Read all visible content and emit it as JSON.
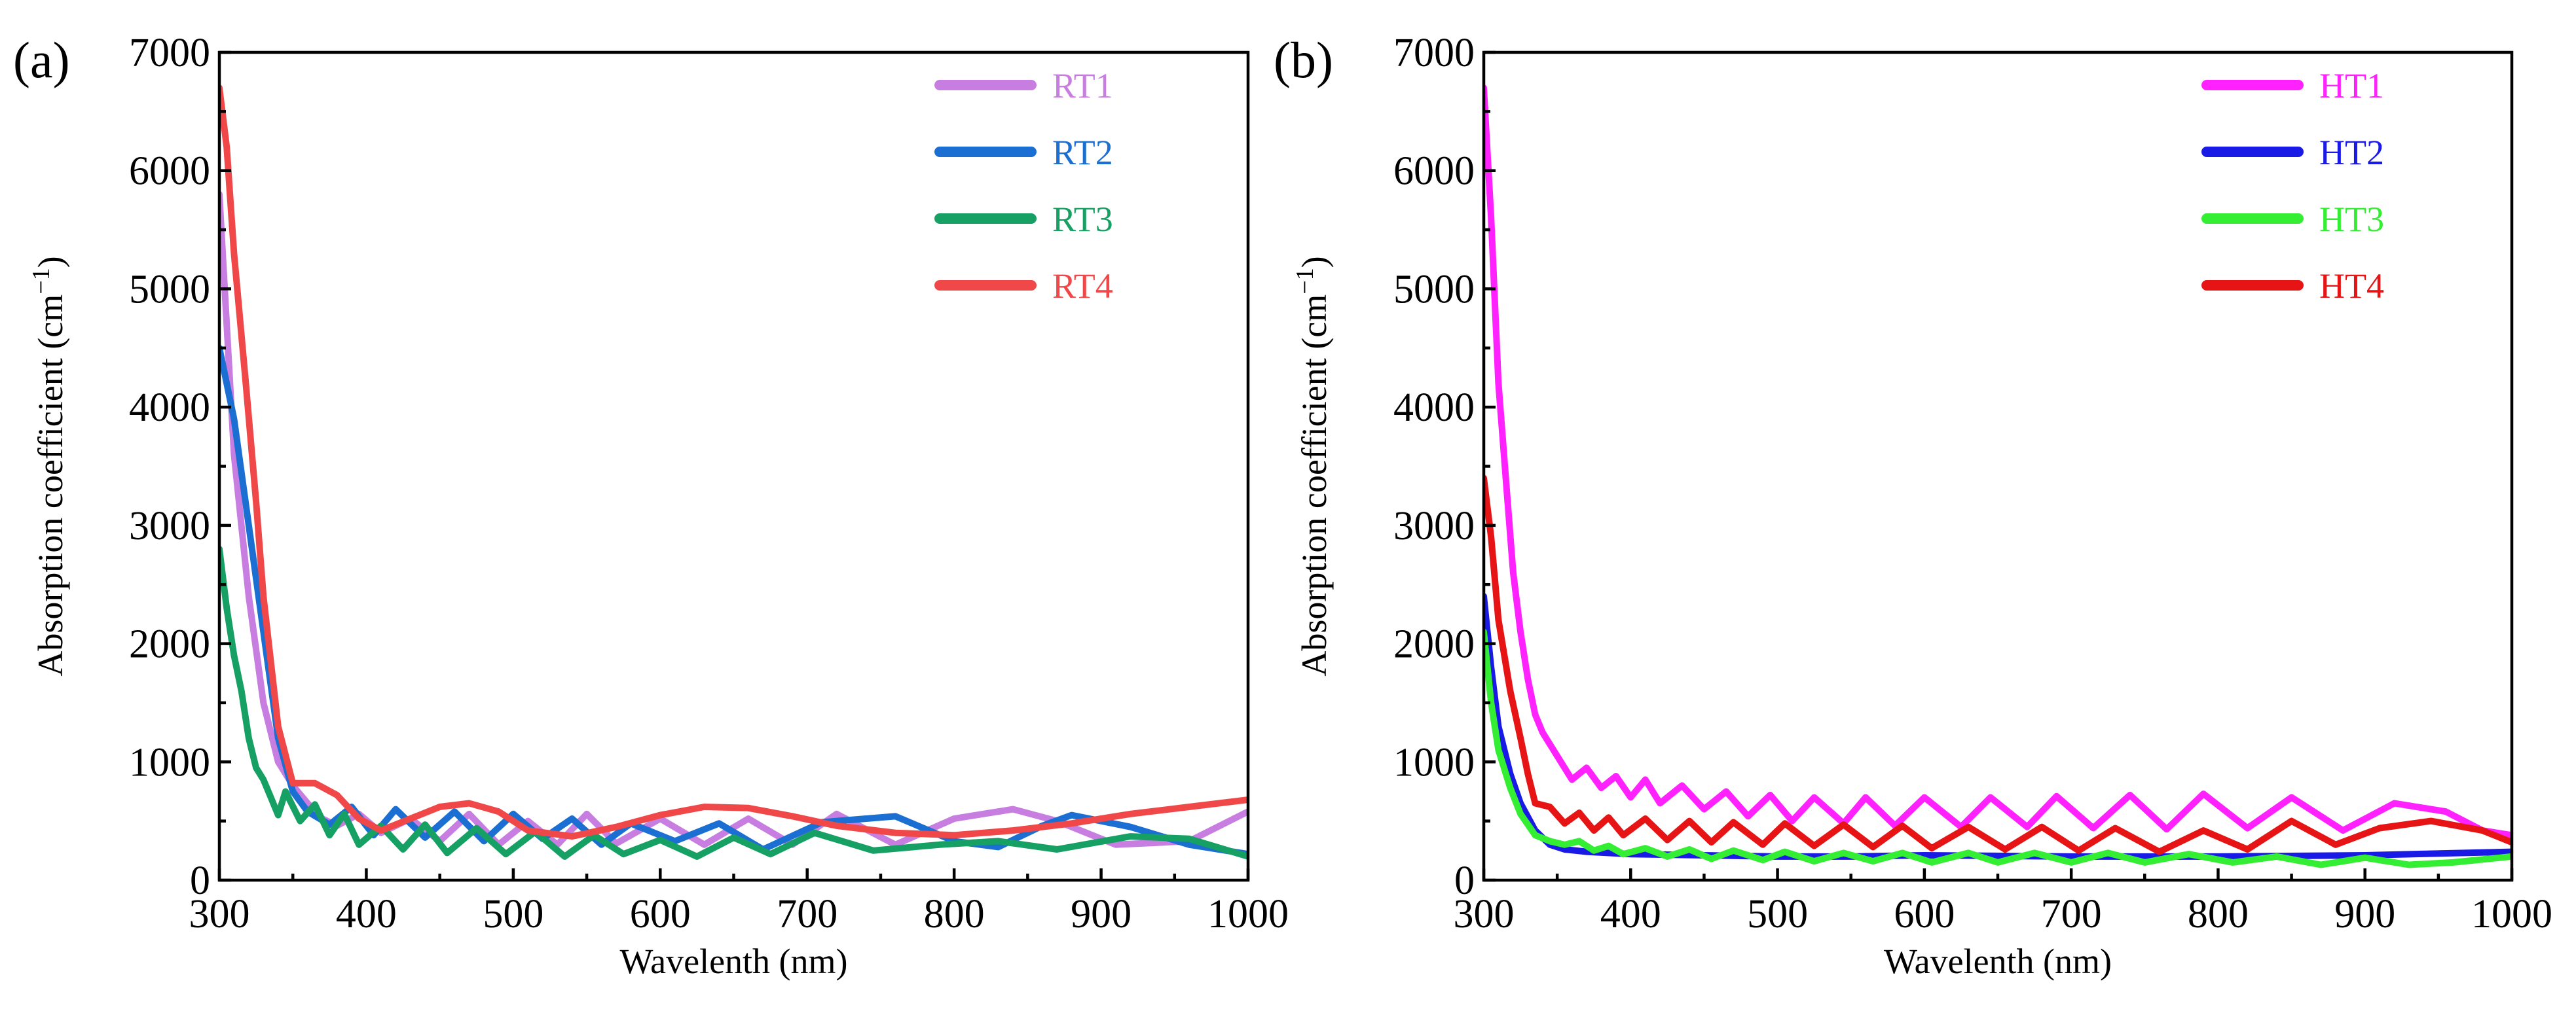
{
  "chart_data": [
    {
      "type": "line",
      "panel_label": "(a)",
      "xlabel": "Wavelenth (nm)",
      "ylabel_main": "Absorption coefficient (cm",
      "ylabel_sup": "−1",
      "ylabel_close": ")",
      "xlim": [
        300,
        1000
      ],
      "ylim": [
        0,
        7000
      ],
      "xticks": [
        300,
        400,
        500,
        600,
        700,
        800,
        900,
        1000
      ],
      "yticks": [
        0,
        1000,
        2000,
        3000,
        4000,
        5000,
        6000,
        7000
      ],
      "legend_position": "top-right",
      "series": [
        {
          "name": "RT1",
          "color": "#c77ee0",
          "points": [
            [
              300,
              5800
            ],
            [
              310,
              3600
            ],
            [
              320,
              2400
            ],
            [
              330,
              1500
            ],
            [
              340,
              1000
            ],
            [
              350,
              800
            ],
            [
              360,
              650
            ],
            [
              370,
              520
            ],
            [
              380,
              460
            ],
            [
              395,
              560
            ],
            [
              410,
              400
            ],
            [
              430,
              520
            ],
            [
              450,
              330
            ],
            [
              470,
              560
            ],
            [
              490,
              300
            ],
            [
              510,
              500
            ],
            [
              530,
              300
            ],
            [
              550,
              560
            ],
            [
              570,
              310
            ],
            [
              600,
              520
            ],
            [
              630,
              300
            ],
            [
              660,
              520
            ],
            [
              690,
              300
            ],
            [
              720,
              560
            ],
            [
              760,
              300
            ],
            [
              800,
              520
            ],
            [
              840,
              600
            ],
            [
              870,
              500
            ],
            [
              910,
              300
            ],
            [
              960,
              330
            ],
            [
              1000,
              580
            ]
          ]
        },
        {
          "name": "RT2",
          "color": "#1c6fd2",
          "points": [
            [
              300,
              4500
            ],
            [
              310,
              3900
            ],
            [
              320,
              3000
            ],
            [
              330,
              2100
            ],
            [
              340,
              1200
            ],
            [
              350,
              750
            ],
            [
              360,
              580
            ],
            [
              375,
              470
            ],
            [
              390,
              620
            ],
            [
              405,
              380
            ],
            [
              420,
              600
            ],
            [
              440,
              360
            ],
            [
              460,
              580
            ],
            [
              480,
              330
            ],
            [
              500,
              560
            ],
            [
              520,
              350
            ],
            [
              540,
              520
            ],
            [
              560,
              300
            ],
            [
              580,
              480
            ],
            [
              610,
              330
            ],
            [
              640,
              480
            ],
            [
              670,
              260
            ],
            [
              710,
              490
            ],
            [
              760,
              540
            ],
            [
              800,
              330
            ],
            [
              830,
              280
            ],
            [
              860,
              460
            ],
            [
              880,
              550
            ],
            [
              920,
              450
            ],
            [
              960,
              300
            ],
            [
              1000,
              220
            ]
          ]
        },
        {
          "name": "RT3",
          "color": "#16a063",
          "points": [
            [
              300,
              2800
            ],
            [
              305,
              2300
            ],
            [
              310,
              1900
            ],
            [
              315,
              1600
            ],
            [
              320,
              1200
            ],
            [
              325,
              950
            ],
            [
              330,
              850
            ],
            [
              335,
              700
            ],
            [
              340,
              550
            ],
            [
              345,
              750
            ],
            [
              355,
              500
            ],
            [
              365,
              640
            ],
            [
              375,
              380
            ],
            [
              385,
              560
            ],
            [
              395,
              300
            ],
            [
              410,
              460
            ],
            [
              425,
              260
            ],
            [
              440,
              470
            ],
            [
              455,
              230
            ],
            [
              475,
              440
            ],
            [
              495,
              220
            ],
            [
              515,
              410
            ],
            [
              535,
              200
            ],
            [
              555,
              380
            ],
            [
              575,
              220
            ],
            [
              600,
              340
            ],
            [
              625,
              200
            ],
            [
              650,
              360
            ],
            [
              675,
              220
            ],
            [
              705,
              400
            ],
            [
              745,
              250
            ],
            [
              790,
              300
            ],
            [
              830,
              330
            ],
            [
              870,
              260
            ],
            [
              920,
              370
            ],
            [
              960,
              350
            ],
            [
              1000,
              200
            ]
          ]
        },
        {
          "name": "RT4",
          "color": "#f04848",
          "points": [
            [
              300,
              6700
            ],
            [
              305,
              6200
            ],
            [
              310,
              5300
            ],
            [
              318,
              4200
            ],
            [
              325,
              3200
            ],
            [
              330,
              2400
            ],
            [
              340,
              1300
            ],
            [
              350,
              820
            ],
            [
              365,
              820
            ],
            [
              380,
              720
            ],
            [
              395,
              520
            ],
            [
              410,
              420
            ],
            [
              430,
              520
            ],
            [
              450,
              620
            ],
            [
              470,
              650
            ],
            [
              490,
              580
            ],
            [
              510,
              420
            ],
            [
              540,
              370
            ],
            [
              570,
              450
            ],
            [
              600,
              550
            ],
            [
              630,
              620
            ],
            [
              660,
              610
            ],
            [
              690,
              540
            ],
            [
              720,
              460
            ],
            [
              760,
              400
            ],
            [
              800,
              380
            ],
            [
              840,
              420
            ],
            [
              880,
              480
            ],
            [
              920,
              560
            ],
            [
              960,
              620
            ],
            [
              1000,
              680
            ]
          ]
        }
      ]
    },
    {
      "type": "line",
      "panel_label": "(b)",
      "xlabel": "Wavelenth (nm)",
      "ylabel_main": "Absorption coefficient (cm",
      "ylabel_sup": "−1",
      "ylabel_close": ")",
      "xlim": [
        300,
        1000
      ],
      "ylim": [
        0,
        7000
      ],
      "xticks": [
        300,
        400,
        500,
        600,
        700,
        800,
        900,
        1000
      ],
      "yticks": [
        0,
        1000,
        2000,
        3000,
        4000,
        5000,
        6000,
        7000
      ],
      "legend_position": "top-right",
      "series": [
        {
          "name": "HT1",
          "color": "#ff22ff",
          "points": [
            [
              300,
              6700
            ],
            [
              305,
              5600
            ],
            [
              310,
              4200
            ],
            [
              315,
              3400
            ],
            [
              320,
              2600
            ],
            [
              325,
              2100
            ],
            [
              330,
              1700
            ],
            [
              335,
              1400
            ],
            [
              340,
              1250
            ],
            [
              345,
              1150
            ],
            [
              350,
              1050
            ],
            [
              360,
              850
            ],
            [
              370,
              950
            ],
            [
              380,
              780
            ],
            [
              390,
              880
            ],
            [
              400,
              700
            ],
            [
              410,
              850
            ],
            [
              420,
              650
            ],
            [
              435,
              800
            ],
            [
              450,
              600
            ],
            [
              465,
              750
            ],
            [
              480,
              540
            ],
            [
              495,
              720
            ],
            [
              510,
              500
            ],
            [
              525,
              700
            ],
            [
              545,
              480
            ],
            [
              560,
              700
            ],
            [
              580,
              460
            ],
            [
              600,
              700
            ],
            [
              625,
              450
            ],
            [
              645,
              700
            ],
            [
              670,
              450
            ],
            [
              690,
              710
            ],
            [
              715,
              440
            ],
            [
              740,
              720
            ],
            [
              765,
              430
            ],
            [
              790,
              730
            ],
            [
              820,
              440
            ],
            [
              850,
              700
            ],
            [
              885,
              420
            ],
            [
              920,
              650
            ],
            [
              955,
              580
            ],
            [
              980,
              420
            ],
            [
              1000,
              380
            ]
          ]
        },
        {
          "name": "HT2",
          "color": "#1a1ae6",
          "points": [
            [
              300,
              2400
            ],
            [
              305,
              1800
            ],
            [
              310,
              1300
            ],
            [
              318,
              900
            ],
            [
              325,
              650
            ],
            [
              335,
              420
            ],
            [
              345,
              300
            ],
            [
              355,
              260
            ],
            [
              370,
              240
            ],
            [
              400,
              220
            ],
            [
              450,
              210
            ],
            [
              500,
              200
            ],
            [
              550,
              200
            ],
            [
              600,
              210
            ],
            [
              700,
              200
            ],
            [
              800,
              200
            ],
            [
              900,
              210
            ],
            [
              1000,
              240
            ]
          ]
        },
        {
          "name": "HT3",
          "color": "#33ee33",
          "points": [
            [
              300,
              2100
            ],
            [
              305,
              1500
            ],
            [
              310,
              1100
            ],
            [
              318,
              780
            ],
            [
              325,
              560
            ],
            [
              335,
              380
            ],
            [
              345,
              330
            ],
            [
              355,
              300
            ],
            [
              365,
              330
            ],
            [
              375,
              250
            ],
            [
              385,
              290
            ],
            [
              395,
              220
            ],
            [
              410,
              270
            ],
            [
              425,
              200
            ],
            [
              440,
              260
            ],
            [
              455,
              180
            ],
            [
              470,
              250
            ],
            [
              490,
              170
            ],
            [
              505,
              240
            ],
            [
              525,
              160
            ],
            [
              545,
              230
            ],
            [
              565,
              160
            ],
            [
              585,
              230
            ],
            [
              605,
              150
            ],
            [
              630,
              230
            ],
            [
              650,
              150
            ],
            [
              675,
              230
            ],
            [
              700,
              150
            ],
            [
              725,
              230
            ],
            [
              750,
              150
            ],
            [
              780,
              220
            ],
            [
              810,
              150
            ],
            [
              840,
              200
            ],
            [
              870,
              130
            ],
            [
              900,
              190
            ],
            [
              930,
              130
            ],
            [
              960,
              150
            ],
            [
              1000,
              200
            ]
          ]
        },
        {
          "name": "HT4",
          "color": "#e61414",
          "points": [
            [
              300,
              3400
            ],
            [
              305,
              2900
            ],
            [
              310,
              2200
            ],
            [
              318,
              1600
            ],
            [
              325,
              1200
            ],
            [
              330,
              900
            ],
            [
              335,
              650
            ],
            [
              345,
              620
            ],
            [
              355,
              480
            ],
            [
              365,
              570
            ],
            [
              375,
              420
            ],
            [
              385,
              530
            ],
            [
              395,
              380
            ],
            [
              410,
              520
            ],
            [
              425,
              340
            ],
            [
              440,
              500
            ],
            [
              455,
              320
            ],
            [
              470,
              490
            ],
            [
              490,
              300
            ],
            [
              505,
              480
            ],
            [
              525,
              290
            ],
            [
              545,
              470
            ],
            [
              565,
              280
            ],
            [
              585,
              460
            ],
            [
              605,
              270
            ],
            [
              630,
              450
            ],
            [
              655,
              260
            ],
            [
              680,
              450
            ],
            [
              705,
              250
            ],
            [
              730,
              440
            ],
            [
              760,
              240
            ],
            [
              790,
              420
            ],
            [
              820,
              260
            ],
            [
              850,
              500
            ],
            [
              880,
              300
            ],
            [
              910,
              440
            ],
            [
              945,
              500
            ],
            [
              980,
              420
            ],
            [
              1000,
              320
            ]
          ]
        }
      ]
    }
  ]
}
